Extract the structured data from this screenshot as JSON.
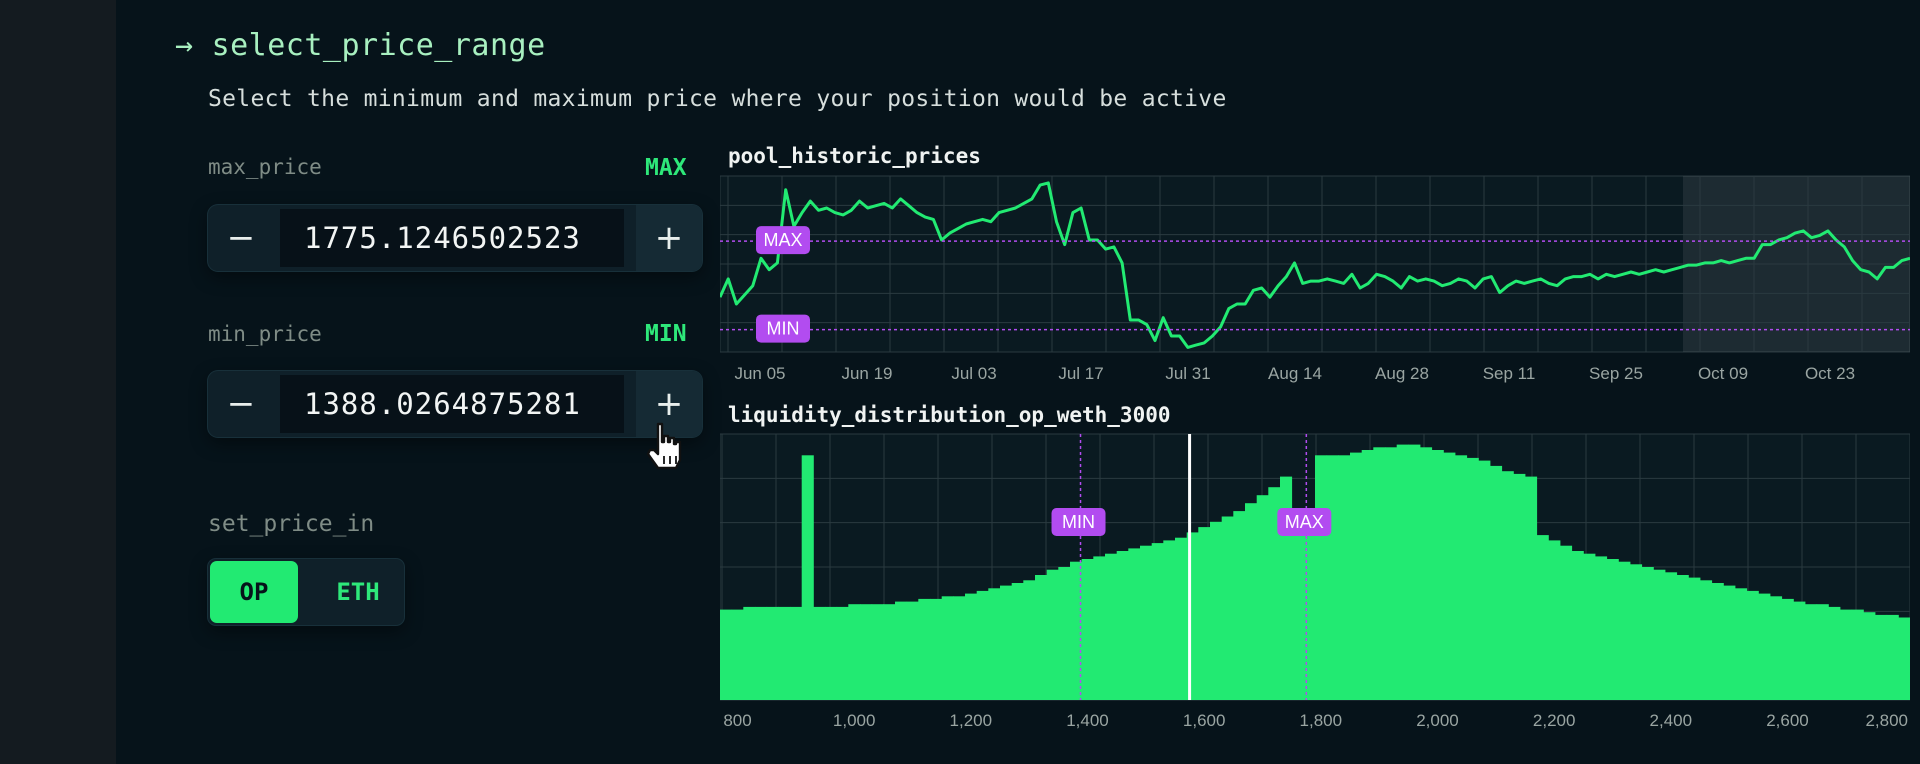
{
  "header": {
    "arrow": "→",
    "title": "select_price_range",
    "subtitle": "Select the minimum and maximum price where your position would be active"
  },
  "max_price": {
    "label": "max_price",
    "tag": "MAX",
    "value": "1775.1246502523",
    "minus": "−",
    "plus": "+"
  },
  "min_price": {
    "label": "min_price",
    "tag": "MIN",
    "value": "1388.0264875281",
    "minus": "−",
    "plus": "+"
  },
  "set_price_in": {
    "label": "set_price_in",
    "options": [
      "OP",
      "ETH"
    ],
    "selected": "OP"
  },
  "colors": {
    "accent_green": "#22ea72",
    "marker_purple": "#b24cf0",
    "background": "#06131a"
  },
  "chart_data": [
    {
      "type": "line",
      "title": "pool_historic_prices",
      "x_tick_labels": [
        "Jun 05",
        "Jun 19",
        "Jul 03",
        "Jul 17",
        "Jul 31",
        "Aug 14",
        "Aug 28",
        "Sep 11",
        "Sep 25",
        "Oct 09",
        "Oct 23"
      ],
      "series": [
        {
          "values": [
            1530,
            1610,
            1500,
            1540,
            1580,
            1700,
            1650,
            1680,
            2000,
            1840,
            1900,
            1950,
            1910,
            1920,
            1900,
            1890,
            1910,
            1950,
            1920,
            1930,
            1940,
            1920,
            1960,
            1930,
            1900,
            1880,
            1870,
            1780,
            1810,
            1830,
            1850,
            1860,
            1870,
            1860,
            1900,
            1910,
            1920,
            1940,
            1960,
            2020,
            2030,
            1860,
            1760,
            1900,
            1920,
            1780,
            1780,
            1740,
            1750,
            1680,
            1430,
            1430,
            1410,
            1340,
            1440,
            1360,
            1360,
            1310,
            1320,
            1330,
            1360,
            1400,
            1480,
            1500,
            1500,
            1560,
            1570,
            1530,
            1580,
            1620,
            1680,
            1590,
            1600,
            1600,
            1610,
            1600,
            1590,
            1630,
            1570,
            1590,
            1630,
            1620,
            1600,
            1570,
            1620,
            1600,
            1610,
            1600,
            1580,
            1590,
            1610,
            1600,
            1570,
            1610,
            1620,
            1550,
            1580,
            1600,
            1590,
            1600,
            1610,
            1590,
            1580,
            1610,
            1620,
            1620,
            1630,
            1610,
            1630,
            1620,
            1630,
            1640,
            1630,
            1640,
            1650,
            1640,
            1650,
            1660,
            1670,
            1670,
            1680,
            1680,
            1690,
            1680,
            1690,
            1700,
            1700,
            1760,
            1760,
            1780,
            1790,
            1810,
            1820,
            1790,
            1800,
            1820,
            1780,
            1750,
            1690,
            1650,
            1640,
            1610,
            1660,
            1660,
            1690,
            1700
          ]
        }
      ],
      "markers": [
        {
          "label": "MAX",
          "value": 1775.12
        },
        {
          "label": "MIN",
          "value": 1388.03
        }
      ],
      "highlight_range": [
        "Oct 09",
        "Oct 30"
      ]
    },
    {
      "type": "bar",
      "title": "liquidity_distribution_op_weth_3000",
      "x_tick_labels": [
        "800",
        "1,000",
        "1,200",
        "1,400",
        "1,600",
        "1,800",
        "2,000",
        "2,200",
        "2,400",
        "2,600",
        "2,800"
      ],
      "xlim": [
        770,
        2810
      ],
      "bin_width": 20,
      "bins_start": 770,
      "values": [
        34,
        34,
        35,
        35,
        35,
        35,
        35,
        92,
        35,
        35,
        35,
        36,
        36,
        36,
        36,
        37,
        37,
        38,
        38,
        39,
        39,
        40,
        41,
        42,
        43,
        44,
        45,
        47,
        49,
        50,
        52,
        53,
        54,
        55,
        56,
        57,
        58,
        59,
        60,
        61,
        63,
        65,
        67,
        69,
        71,
        74,
        77,
        80,
        84,
        66,
        67,
        92,
        92,
        92,
        93,
        94,
        95,
        95,
        96,
        96,
        95,
        94,
        93,
        92,
        91,
        90,
        88,
        86,
        85,
        84,
        62,
        60,
        58,
        56,
        55,
        54,
        53,
        52,
        51,
        50,
        49,
        48,
        47,
        46,
        45,
        44,
        43,
        42,
        41,
        40,
        39,
        38,
        37,
        36,
        36,
        35,
        34,
        34,
        33,
        32,
        32,
        31,
        31,
        30,
        29,
        29,
        28,
        27,
        27,
        26,
        25,
        25,
        24,
        24,
        23,
        23,
        22,
        22,
        21,
        21,
        21,
        20,
        20,
        20,
        19,
        19,
        19,
        18,
        18,
        18,
        18,
        17,
        17,
        17,
        17,
        16,
        16,
        16,
        16,
        16,
        15,
        15
      ],
      "current_price": 1575,
      "markers": [
        {
          "label": "MIN",
          "value": 1388.03
        },
        {
          "label": "MAX",
          "value": 1775.12
        }
      ]
    }
  ]
}
